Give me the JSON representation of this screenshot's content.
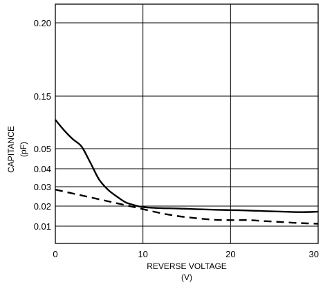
{
  "chart_data": {
    "type": "line",
    "xlabel_line1": "REVERSE VOLTAGE",
    "xlabel_line2": "(V)",
    "ylabel_line1": "CAPITANCE",
    "ylabel_line2": "(pF)",
    "xlim": [
      0,
      30
    ],
    "x_ticks": [
      0,
      10,
      20,
      30
    ],
    "x_tick_labels": [
      "0",
      "10",
      "20",
      "30"
    ],
    "y_scale": "nonuniform",
    "y_ticks": [
      0.01,
      0.02,
      0.03,
      0.04,
      0.05,
      0.15,
      0.2
    ],
    "y_tick_labels": [
      "0.01",
      "0.02",
      "0.03",
      "0.04",
      "0.05",
      "0.15",
      "0.20"
    ],
    "grid": true,
    "series": [
      {
        "style": "solid",
        "color": "#000000",
        "x": [
          0,
          1,
          2,
          3,
          4,
          5,
          6,
          7,
          8,
          9,
          10,
          12,
          14,
          16,
          18,
          20,
          22,
          24,
          26,
          28,
          30
        ],
        "y": [
          0.105,
          0.085,
          0.068,
          0.054,
          0.043,
          0.034,
          0.0285,
          0.025,
          0.022,
          0.0205,
          0.0195,
          0.019,
          0.0188,
          0.0185,
          0.0182,
          0.018,
          0.0178,
          0.0175,
          0.0172,
          0.017,
          0.0172
        ]
      },
      {
        "style": "dashed",
        "color": "#000000",
        "x": [
          0,
          2,
          4,
          6,
          8,
          10,
          12,
          14,
          16,
          18,
          20,
          22,
          24,
          26,
          28,
          30
        ],
        "y": [
          0.0285,
          0.0265,
          0.0245,
          0.0225,
          0.0205,
          0.0185,
          0.0165,
          0.015,
          0.014,
          0.0132,
          0.013,
          0.013,
          0.0125,
          0.012,
          0.0115,
          0.0112
        ]
      }
    ]
  }
}
